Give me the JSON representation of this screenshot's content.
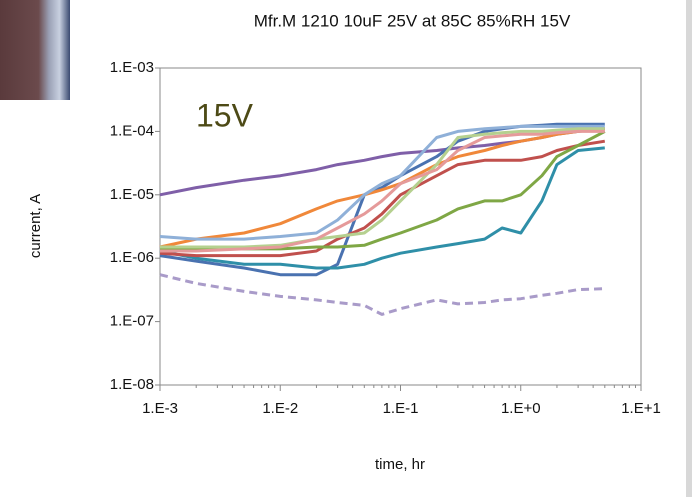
{
  "chart_data": {
    "type": "line",
    "title": "Mfr.M 1210 10uF 25V at 85C 85%RH 15V",
    "annotation": "15V",
    "x_label": "time, hr",
    "y_label": "current, A",
    "x_log": true,
    "y_log": true,
    "xlim": [
      0.001,
      10
    ],
    "ylim": [
      1e-08,
      0.001
    ],
    "xticks": [
      {
        "value": 0.001,
        "label": "1.E-3"
      },
      {
        "value": 0.01,
        "label": "1.E-2"
      },
      {
        "value": 0.1,
        "label": "1.E-1"
      },
      {
        "value": 1,
        "label": "1.E+0"
      },
      {
        "value": 10,
        "label": "1.E+1"
      }
    ],
    "yticks": [
      {
        "value": 1e-08,
        "label": "1.E-08"
      },
      {
        "value": 1e-07,
        "label": "1.E-07"
      },
      {
        "value": 1e-06,
        "label": "1.E-06"
      },
      {
        "value": 1e-05,
        "label": "1.E-05"
      },
      {
        "value": 0.0001,
        "label": "1.E-04"
      },
      {
        "value": 0.001,
        "label": "1.E-03"
      }
    ],
    "x": [
      0.001,
      0.002,
      0.005,
      0.01,
      0.02,
      0.03,
      0.05,
      0.07,
      0.1,
      0.2,
      0.3,
      0.5,
      0.7,
      1,
      1.5,
      2,
      3,
      5
    ],
    "series": [
      {
        "color": "#7f5fa8",
        "values": [
          1e-05,
          1.3e-05,
          1.7e-05,
          2e-05,
          2.5e-05,
          3e-05,
          3.5e-05,
          4e-05,
          4.5e-05,
          5e-05,
          5.5e-05,
          6e-05,
          6.5e-05,
          7e-05,
          8e-05,
          9e-05,
          0.0001,
          0.00011
        ]
      },
      {
        "color": "#a99bc9",
        "dash": true,
        "values": [
          5.5e-07,
          4e-07,
          3e-07,
          2.5e-07,
          2.2e-07,
          2e-07,
          1.8e-07,
          1.3e-07,
          1.6e-07,
          2.2e-07,
          1.9e-07,
          2e-07,
          2.2e-07,
          2.3e-07,
          2.6e-07,
          2.8e-07,
          3.2e-07,
          3.3e-07
        ]
      },
      {
        "color": "#4a72b0",
        "values": [
          1.1e-06,
          9e-07,
          7e-07,
          5.5e-07,
          5.5e-07,
          8e-07,
          1e-05,
          1.3e-05,
          2e-05,
          4e-05,
          7e-05,
          0.0001,
          0.00011,
          0.00012,
          0.000125,
          0.00013,
          0.00013,
          0.00013
        ]
      },
      {
        "color": "#2f8fa8",
        "values": [
          1.3e-06,
          1e-06,
          8e-07,
          8e-07,
          7e-07,
          7e-07,
          8e-07,
          1e-06,
          1.2e-06,
          1.5e-06,
          1.7e-06,
          2e-06,
          3e-06,
          2.5e-06,
          8e-06,
          3e-05,
          5e-05,
          5.5e-05
        ]
      },
      {
        "color": "#c0504d",
        "values": [
          1.2e-06,
          1.1e-06,
          1.1e-06,
          1.1e-06,
          1.3e-06,
          2e-06,
          3e-06,
          5e-06,
          1e-05,
          2e-05,
          3e-05,
          3.5e-05,
          3.5e-05,
          3.5e-05,
          4e-05,
          5e-05,
          6e-05,
          7e-05
        ]
      },
      {
        "color": "#f0883a",
        "values": [
          1.5e-06,
          2e-06,
          2.5e-06,
          3.5e-06,
          6e-06,
          8e-06,
          1e-05,
          1.2e-05,
          1.5e-05,
          3e-05,
          4e-05,
          5e-05,
          6e-05,
          7e-05,
          8e-05,
          9e-05,
          0.0001,
          0.00011
        ]
      },
      {
        "color": "#7fa745",
        "values": [
          1.4e-06,
          1.4e-06,
          1.4e-06,
          1.4e-06,
          1.5e-06,
          1.5e-06,
          1.6e-06,
          2e-06,
          2.5e-06,
          4e-06,
          6e-06,
          8e-06,
          8e-06,
          1e-05,
          2e-05,
          4e-05,
          6e-05,
          0.0001
        ]
      },
      {
        "color": "#8fb0d8",
        "values": [
          2.2e-06,
          2e-06,
          2e-06,
          2.2e-06,
          2.5e-06,
          4e-06,
          1e-05,
          1.5e-05,
          2e-05,
          8e-05,
          0.0001,
          0.00011,
          0.000115,
          0.00012,
          0.00012,
          0.00012,
          0.00012,
          0.00012
        ]
      },
      {
        "color": "#b5d08f",
        "values": [
          1.5e-06,
          1.5e-06,
          1.5e-06,
          1.6e-06,
          2e-06,
          2.2e-06,
          2.5e-06,
          4e-06,
          8e-06,
          3e-05,
          8e-05,
          9e-05,
          9.5e-05,
          0.0001,
          0.0001,
          0.000105,
          0.00011,
          0.00011
        ]
      },
      {
        "color": "#e59a9a",
        "values": [
          1.3e-06,
          1.3e-06,
          1.4e-06,
          1.5e-06,
          2e-06,
          3e-06,
          5e-06,
          8e-06,
          1.5e-05,
          2.5e-05,
          5e-05,
          8e-05,
          8.5e-05,
          9e-05,
          9e-05,
          9.5e-05,
          0.0001,
          0.0001
        ]
      }
    ]
  }
}
